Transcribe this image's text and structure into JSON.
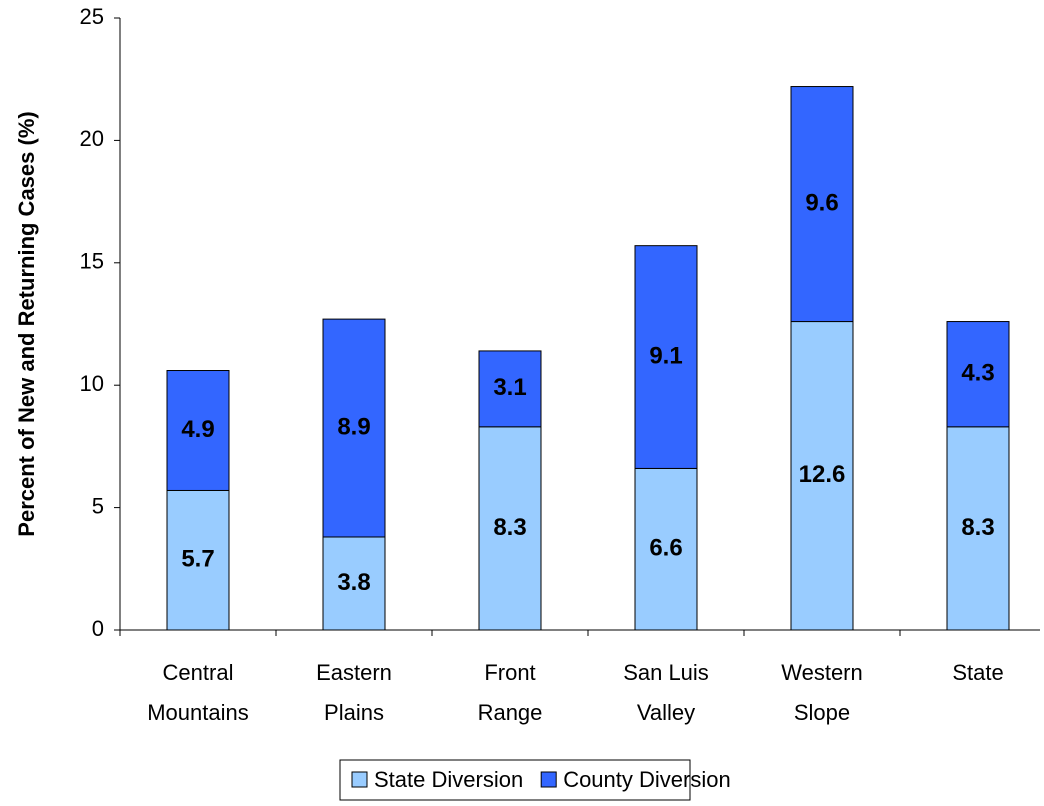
{
  "chart_data": {
    "type": "stacked-bar",
    "y_label": "Percent of New and Returning Cases (%)",
    "categories": [
      [
        "Central",
        "Mountains"
      ],
      [
        "Eastern",
        "Plains"
      ],
      [
        "Front",
        "Range"
      ],
      [
        "San Luis",
        "Valley"
      ],
      [
        "Western",
        "Slope"
      ],
      [
        "State"
      ]
    ],
    "series": [
      {
        "name": "State Diversion",
        "color": "#99ccff",
        "values": [
          5.7,
          3.8,
          8.3,
          6.6,
          12.6,
          8.3
        ]
      },
      {
        "name": "County Diversion",
        "color": "#3366ff",
        "values": [
          4.9,
          8.9,
          3.1,
          9.1,
          9.6,
          4.3
        ]
      }
    ],
    "ylim": [
      0,
      25
    ],
    "yticks": [
      0,
      5,
      10,
      15,
      20,
      25
    ],
    "grid": false,
    "legend": "bottom"
  }
}
